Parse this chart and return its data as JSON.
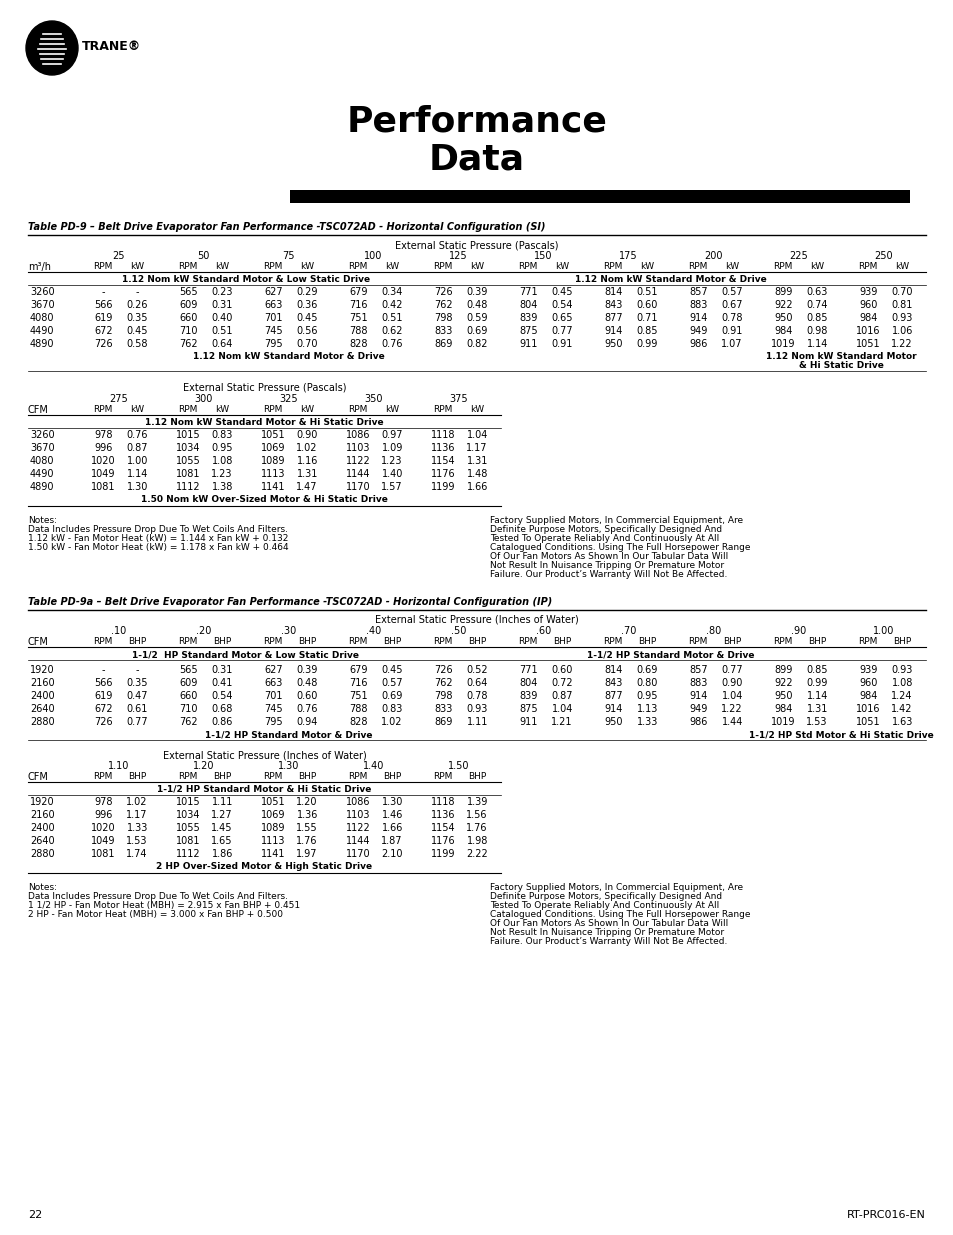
{
  "title_line1": "Performance",
  "title_line2": "Data",
  "table1_title": "Table PD-9 – Belt Drive Evaporator Fan Performance -TSC072AD - Horizontal Configuration (SI)",
  "table1_ext_label": "External Static Pressure (Pascals)",
  "table1_col_headers_top": [
    "25",
    "50",
    "75",
    "100",
    "125",
    "150",
    "175",
    "200",
    "225",
    "250"
  ],
  "table1_row_label": "m³/h",
  "table1_section1_label": "1.12 Nom kW Standard Motor & Low Static Drive",
  "table1_section2_label": "1.12 Nom kW Standard Motor & Drive",
  "table1_section3_label": "1.12 Nom kW Standard Motor & Drive",
  "table1_section4a_label": "1.12 Nom kW Standard Motor",
  "table1_section4b_label": "& Hi Static Drive",
  "table1_data": [
    [
      3260,
      "-",
      "-",
      565,
      "0.23",
      627,
      "0.29",
      "679",
      "0.34",
      726,
      "0.39",
      771,
      "0.45",
      814,
      "0.51",
      857,
      "0.57",
      899,
      "0.63",
      939,
      "0.70"
    ],
    [
      3670,
      566,
      "0.26",
      609,
      "0.31",
      "663",
      "0.36",
      716,
      "0.42",
      762,
      "0.48",
      804,
      "0.54",
      843,
      "0.60",
      883,
      "0.67",
      922,
      "0.74",
      960,
      "0.81"
    ],
    [
      4080,
      619,
      "0.35",
      "660",
      "0.40",
      701,
      "0.45",
      751,
      "0.51",
      798,
      "0.59",
      839,
      "0.65",
      877,
      "0.71",
      914,
      "0.78",
      "950",
      "0.85",
      "984",
      "0.93"
    ],
    [
      4490,
      "672",
      "0.45",
      710,
      "0.51",
      745,
      "0.56",
      788,
      "0.62",
      833,
      "0.69",
      875,
      "0.77",
      914,
      "0.85",
      "949",
      "0.91",
      "984",
      "0.98",
      1016,
      "1.06"
    ],
    [
      4890,
      726,
      "0.58",
      762,
      "0.64",
      795,
      "0.70",
      828,
      "0.76",
      869,
      "0.82",
      911,
      "0.91",
      950,
      "0.99",
      "986",
      "1.07",
      1019,
      "1.14",
      1051,
      "1.22"
    ]
  ],
  "table1b_ext_label": "External Static Pressure (Pascals)",
  "table1b_col_headers_top": [
    "275",
    "300",
    "325",
    "350",
    "375"
  ],
  "table1b_row_label": "CFM",
  "table1b_section_label": "1.12 Nom kW Standard Motor & Hi Static Drive",
  "table1b_footer_label": "1.50 Nom kW Over-Sized Motor & Hi Static Drive",
  "table1b_data": [
    [
      3260,
      978,
      "0.76",
      1015,
      "0.83",
      1051,
      "0.90",
      1086,
      "0.97",
      1118,
      "1.04"
    ],
    [
      3670,
      996,
      "0.87",
      1034,
      "0.95",
      1069,
      "1.02",
      1103,
      "1.09",
      1136,
      "1.17"
    ],
    [
      4080,
      1020,
      "1.00",
      1055,
      "1.08",
      1089,
      "1.16",
      1122,
      "1.23",
      1154,
      "1.31"
    ],
    [
      4490,
      1049,
      "1.14",
      "1081",
      "1.23",
      "1113",
      "1.31",
      "1144",
      "1.40",
      1176,
      "1.48"
    ],
    [
      4890,
      1081,
      "1.30",
      "1112",
      "1.38",
      1141,
      "1.47",
      1170,
      "1.57",
      1199,
      "1.66"
    ]
  ],
  "notes1_left": "Notes:\nData Includes Pressure Drop Due To Wet Coils And Filters.\n1.12 kW - Fan Motor Heat (kW) = 1.144 x Fan kW + 0.132\n1.50 kW - Fan Motor Heat (kW) = 1.178 x Fan kW + 0.464",
  "notes1_right": "Factory Supplied Motors, In Commercial Equipment, Are\nDefinite Purpose Motors, Specifically Designed And\nTested To Operate Reliably And Continuously At All\nCatalogued Conditions. Using The Full Horsepower Range\nOf Our Fan Motors As Shown In Our Tabular Data Will\nNot Result In Nuisance Tripping Or Premature Motor\nFailure. Our Product’s Warranty Will Not Be Affected.",
  "table2_title": "Table PD-9a – Belt Drive Evaporator Fan Performance -TSC072AD - Horizontal Configuration (IP)",
  "table2_ext_label": "External Static Pressure (Inches of Water)",
  "table2_col_headers_top": [
    ".10",
    ".20",
    ".30",
    ".40",
    ".50",
    ".60",
    ".70",
    ".80",
    ".90",
    "1.00"
  ],
  "table2_row_label": "CFM",
  "table2_section1_label": "1-1/2  HP Standard Motor & Low Static Drive",
  "table2_section2_label": "1-1/2 HP Standard Motor & Drive",
  "table2_section3_label": "1-1/2 HP Standard Motor & Drive",
  "table2_section4_label": "1-1/2 HP Std Motor & Hi Static Drive",
  "table2_data": [
    [
      1920,
      "-",
      "-",
      565,
      "0.31",
      627,
      "0.39",
      "679",
      "0.45",
      726,
      "0.52",
      771,
      "0.60",
      814,
      "0.69",
      857,
      "0.77",
      899,
      "0.85",
      939,
      "0.93"
    ],
    [
      2160,
      566,
      "0.35",
      609,
      "0.41",
      663,
      "0.48",
      716,
      "0.57",
      762,
      "0.64",
      804,
      "0.72",
      843,
      "0.80",
      883,
      "0.90",
      922,
      "0.99",
      960,
      "1.08"
    ],
    [
      2400,
      619,
      "0.47",
      660,
      "0.54",
      "701",
      "0.60",
      751,
      "0.69",
      798,
      "0.78",
      839,
      "0.87",
      877,
      "0.95",
      914,
      "1.04",
      "950",
      "1.14",
      "984",
      "1.24"
    ],
    [
      2640,
      "672",
      "0.61",
      710,
      "0.68",
      745,
      "0.76",
      788,
      "0.83",
      833,
      "0.93",
      875,
      "1.04",
      914,
      "1.13",
      "949",
      "1.22",
      "984",
      "1.31",
      1016,
      "1.42"
    ],
    [
      2880,
      726,
      "0.77",
      762,
      "0.86",
      795,
      "0.94",
      828,
      "1.02",
      869,
      "1.11",
      911,
      "1.21",
      950,
      "1.33",
      986,
      "1.44",
      1019,
      "1.53",
      1051,
      "1.63"
    ]
  ],
  "table2b_col_headers_top": [
    "1.10",
    "1.20",
    "1.30",
    "1.40",
    "1.50"
  ],
  "table2b_row_label": "CFM",
  "table2b_section_label": "1-1/2 HP Standard Motor & Hi Static Drive",
  "table2b_footer_label": "2 HP Over-Sized Motor & High Static Drive",
  "table2b_data": [
    [
      1920,
      978,
      "1.02",
      1015,
      "1.11",
      1051,
      "1.20",
      1086,
      "1.30",
      1118,
      "1.39"
    ],
    [
      2160,
      996,
      "1.17",
      1034,
      "1.27",
      1069,
      "1.36",
      1103,
      "1.46",
      1136,
      "1.56"
    ],
    [
      2400,
      1020,
      "1.33",
      1055,
      "1.45",
      1089,
      "1.55",
      1122,
      "1.66",
      1154,
      "1.76"
    ],
    [
      2640,
      1049,
      "1.53",
      1081,
      "1.65",
      1113,
      "1.76",
      1144,
      "1.87",
      1176,
      "1.98"
    ],
    [
      2880,
      1081,
      "1.74",
      1112,
      "1.86",
      1141,
      "1.97",
      1170,
      "2.10",
      1199,
      "2.22"
    ]
  ],
  "notes2_left": "Notes:\nData Includes Pressure Drop Due To Wet Coils And Filters.\n1 1/2 HP - Fan Motor Heat (MBH) = 2.915 x Fan BHP + 0.451\n2 HP - Fan Motor Heat (MBH) = 3.000 x Fan BHP + 0.500",
  "notes2_right": "Factory Supplied Motors, In Commercial Equipment, Are\nDefinite Purpose Motors, Specifically Designed And\nTested To Operate Reliably And Continuously At All\nCatalogued Conditions. Using The Full Horsepower Range\nOf Our Fan Motors As Shown In Our Tabular Data Will\nNot Result In Nuisance Tripping Or Premature Motor\nFailure. Our Product’s Warranty Will Not Be Affected.",
  "page_number": "22",
  "doc_number": "RT-PRC016-EN",
  "bg_color": "#ffffff",
  "text_color": "#000000"
}
